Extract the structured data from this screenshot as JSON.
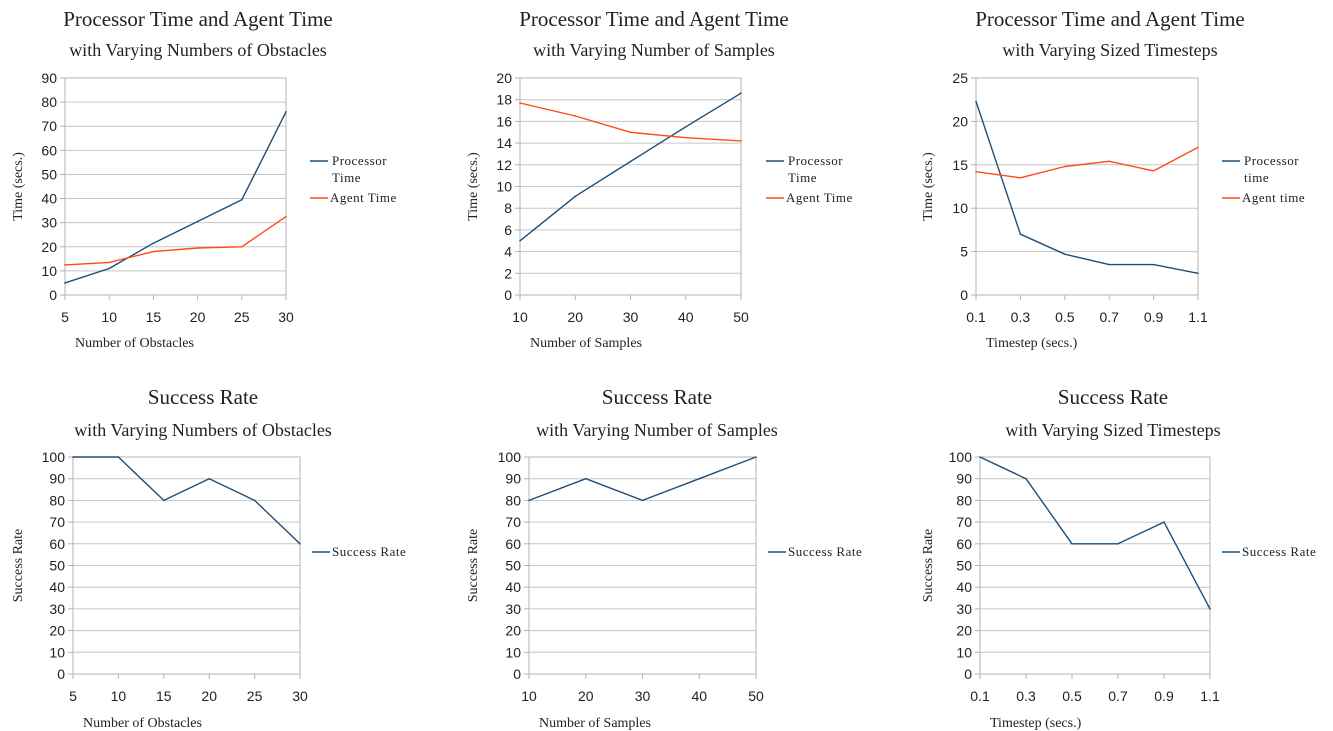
{
  "chart_data": [
    {
      "type": "line",
      "title": "Processor Time and Agent Time",
      "subtitle": "with Varying Numbers of Obstacles",
      "xlabel": "Number of Obstacles",
      "ylabel": "Time (secs.)",
      "x": [
        5,
        10,
        15,
        20,
        25,
        30
      ],
      "x_ticks": [
        "5",
        "10",
        "15",
        "20",
        "25",
        "30"
      ],
      "ylim": [
        0,
        90
      ],
      "y_ticks": [
        0,
        10,
        20,
        30,
        40,
        50,
        60,
        70,
        80,
        90
      ],
      "grid": true,
      "legend_position": "right",
      "series": [
        {
          "name_lines": [
            "Processor",
            "Time"
          ],
          "color": "#1f4e79",
          "values": [
            5,
            11,
            21.5,
            30.5,
            39.5,
            76
          ]
        },
        {
          "name_lines": [
            "Agent Time"
          ],
          "color": "#ff4a1a",
          "values": [
            12.5,
            13.5,
            18,
            19.5,
            20,
            32.5
          ]
        }
      ]
    },
    {
      "type": "line",
      "title": "Processor Time and Agent Time",
      "subtitle": "with Varying Number of Samples",
      "xlabel": "Number of Samples",
      "ylabel": "Time (secs.)",
      "x": [
        10,
        20,
        30,
        40,
        50
      ],
      "x_ticks": [
        "10",
        "20",
        "30",
        "40",
        "50"
      ],
      "ylim": [
        0,
        20
      ],
      "y_ticks": [
        0,
        2,
        4,
        6,
        8,
        10,
        12,
        14,
        16,
        18,
        20
      ],
      "grid": true,
      "legend_position": "right",
      "series": [
        {
          "name_lines": [
            "Processor",
            "Time"
          ],
          "color": "#1f4e79",
          "values": [
            5,
            9.1,
            12.3,
            15.5,
            18.6
          ]
        },
        {
          "name_lines": [
            "Agent Time"
          ],
          "color": "#ff4a1a",
          "values": [
            17.7,
            16.5,
            15,
            14.5,
            14.2
          ]
        }
      ]
    },
    {
      "type": "line",
      "title": "Processor Time and Agent Time",
      "subtitle": "with Varying Sized Timesteps",
      "xlabel": "Timestep (secs.)",
      "ylabel": "Time (secs.)",
      "x": [
        0.1,
        0.3,
        0.5,
        0.7,
        0.9,
        1.1
      ],
      "x_ticks": [
        "0.1",
        "0.3",
        "0.5",
        "0.7",
        "0.9",
        "1.1"
      ],
      "ylim": [
        0,
        25
      ],
      "y_ticks": [
        0,
        5,
        10,
        15,
        20,
        25
      ],
      "grid": true,
      "legend_position": "right",
      "series": [
        {
          "name_lines": [
            "Processor",
            "time"
          ],
          "color": "#1f4e79",
          "values": [
            22.3,
            7,
            4.7,
            3.5,
            3.5,
            2.5
          ]
        },
        {
          "name_lines": [
            "Agent time"
          ],
          "color": "#ff4a1a",
          "values": [
            14.2,
            13.5,
            14.8,
            15.4,
            14.3,
            17
          ]
        }
      ]
    },
    {
      "type": "line",
      "title": "Success Rate",
      "subtitle": "with Varying Numbers of Obstacles",
      "xlabel": "Number of Obstacles",
      "ylabel": "Success Rate",
      "x": [
        5,
        10,
        15,
        20,
        25,
        30
      ],
      "x_ticks": [
        "5",
        "10",
        "15",
        "20",
        "25",
        "30"
      ],
      "ylim": [
        0,
        100
      ],
      "y_ticks": [
        0,
        10,
        20,
        30,
        40,
        50,
        60,
        70,
        80,
        90,
        100
      ],
      "grid": true,
      "legend_position": "right",
      "series": [
        {
          "name_lines": [
            "Success Rate"
          ],
          "color": "#1f4e79",
          "values": [
            100,
            100,
            80,
            90,
            80,
            60
          ]
        }
      ]
    },
    {
      "type": "line",
      "title": "Success Rate",
      "subtitle": "with Varying Number of Samples",
      "xlabel": "Number of Samples",
      "ylabel": "Success Rate",
      "x": [
        10,
        20,
        30,
        40,
        50
      ],
      "x_ticks": [
        "10",
        "20",
        "30",
        "40",
        "50"
      ],
      "ylim": [
        0,
        100
      ],
      "y_ticks": [
        0,
        10,
        20,
        30,
        40,
        50,
        60,
        70,
        80,
        90,
        100
      ],
      "grid": true,
      "legend_position": "right",
      "series": [
        {
          "name_lines": [
            "Success Rate"
          ],
          "color": "#1f4e79",
          "values": [
            80,
            90,
            80,
            90,
            100
          ]
        }
      ]
    },
    {
      "type": "line",
      "title": "Success Rate",
      "subtitle": "with Varying Sized Timesteps",
      "xlabel": "Timestep (secs.)",
      "ylabel": "Success Rate",
      "x": [
        0.1,
        0.3,
        0.5,
        0.7,
        0.9,
        1.1
      ],
      "x_ticks": [
        "0.1",
        "0.3",
        "0.5",
        "0.7",
        "0.9",
        "1.1"
      ],
      "ylim": [
        0,
        100
      ],
      "y_ticks": [
        0,
        10,
        20,
        30,
        40,
        50,
        60,
        70,
        80,
        90,
        100
      ],
      "grid": true,
      "legend_position": "right",
      "series": [
        {
          "name_lines": [
            "Success Rate"
          ],
          "color": "#1f4e79",
          "values": [
            100,
            90,
            60,
            60,
            70,
            30
          ]
        }
      ]
    }
  ]
}
